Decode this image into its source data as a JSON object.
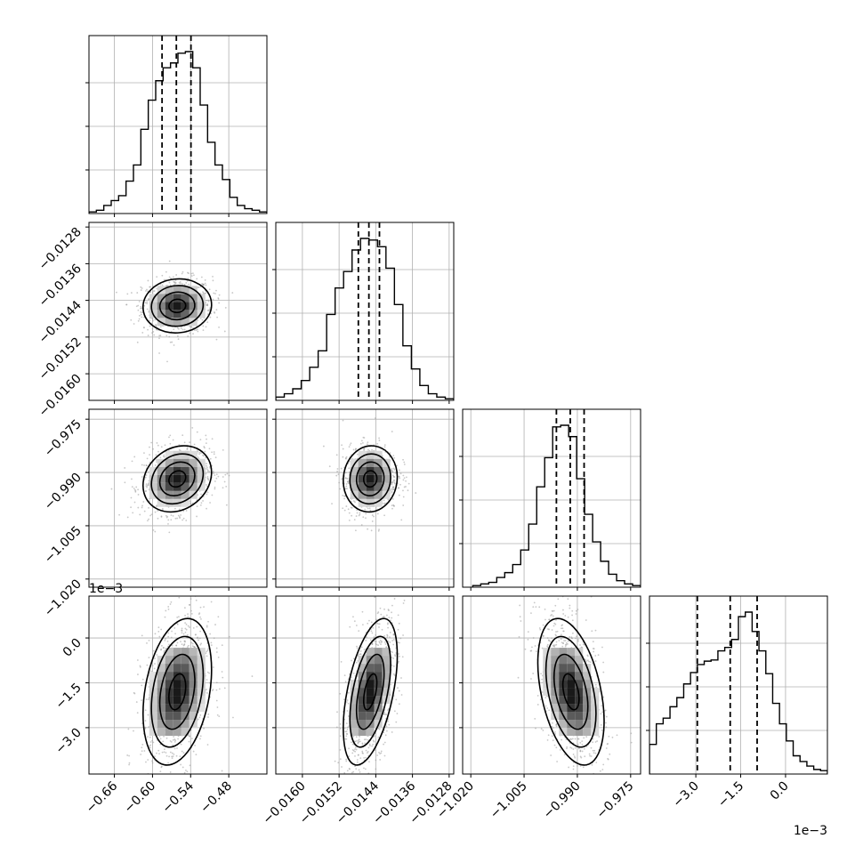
{
  "chart_data": {
    "type": "corner",
    "parameters": 4,
    "grid": true,
    "quantile_lines": "dashed",
    "colors": {
      "hist": "#000000",
      "points": "#9a9a9a",
      "grid": "#b0b0b0"
    },
    "axes": [
      {
        "range": [
          -0.7,
          -0.42
        ],
        "ticks": [
          "−0.66",
          "−0.60",
          "−0.54",
          "−0.48"
        ],
        "tick_values": [
          -0.66,
          -0.6,
          -0.54,
          -0.48
        ],
        "offset": "",
        "quantiles": [
          -0.585,
          -0.5625,
          -0.5395
        ],
        "center": -0.561,
        "sigma": 0.022
      },
      {
        "range": [
          -0.01658,
          -0.0127
        ],
        "ticks": [
          "−0.0160",
          "−0.0152",
          "−0.0144",
          "−0.0136",
          "−0.0128"
        ],
        "tick_values": [
          -0.016,
          -0.0152,
          -0.0144,
          -0.0136,
          -0.0128
        ],
        "offset": "",
        "quantiles": [
          -0.01478,
          -0.01455,
          -0.01432
        ],
        "center": -0.01452,
        "sigma": 0.00024
      },
      {
        "range": [
          -1.0223,
          -0.9722
        ],
        "ticks": [
          "−1.020",
          "−1.005",
          "−0.990",
          "−0.975"
        ],
        "tick_values": [
          -1.02,
          -1.005,
          -0.99,
          -0.975
        ],
        "offset": "",
        "quantiles": [
          -0.9959,
          -0.992,
          -0.9881
        ],
        "center": -0.9918,
        "sigma": 0.0038
      },
      {
        "range": [
          -4.55,
          1.4
        ],
        "ticks": [
          "−3.0",
          "−1.5",
          "0.0"
        ],
        "tick_values": [
          -3.0,
          -1.5,
          0.0
        ],
        "offset": "1e−3",
        "quantiles": [
          -2.95,
          -1.85,
          -0.95
        ],
        "center": -1.8,
        "sigma": 1.0
      }
    ],
    "histograms": [
      [
        0.01,
        0.02,
        0.05,
        0.08,
        0.11,
        0.2,
        0.3,
        0.52,
        0.7,
        0.82,
        0.9,
        0.93,
        0.99,
        1.0,
        0.9,
        0.67,
        0.44,
        0.3,
        0.21,
        0.1,
        0.05,
        0.03,
        0.02,
        0.01
      ],
      [
        0.02,
        0.04,
        0.07,
        0.12,
        0.2,
        0.3,
        0.52,
        0.68,
        0.78,
        0.91,
        0.98,
        0.97,
        0.93,
        0.8,
        0.58,
        0.33,
        0.19,
        0.09,
        0.04,
        0.02,
        0.01
      ],
      [
        0.01,
        0.02,
        0.03,
        0.06,
        0.09,
        0.14,
        0.23,
        0.39,
        0.62,
        0.8,
        0.99,
        1.0,
        0.93,
        0.67,
        0.45,
        0.28,
        0.16,
        0.08,
        0.04,
        0.02,
        0.01
      ],
      [
        0.26,
        0.44,
        0.49,
        0.59,
        0.67,
        0.79,
        0.89,
        0.96,
        0.99,
        1.0,
        1.08,
        1.11,
        1.18,
        1.38,
        1.42,
        1.25,
        1.08,
        0.88,
        0.62,
        0.44,
        0.29,
        0.16,
        0.11,
        0.07,
        0.04,
        0.03
      ]
    ],
    "correlations": {
      "0-1": 0.05,
      "0-2": 0.2,
      "1-2": 0.05,
      "0-3": 0.3,
      "1-3": 0.5,
      "2-3": -0.4
    }
  }
}
